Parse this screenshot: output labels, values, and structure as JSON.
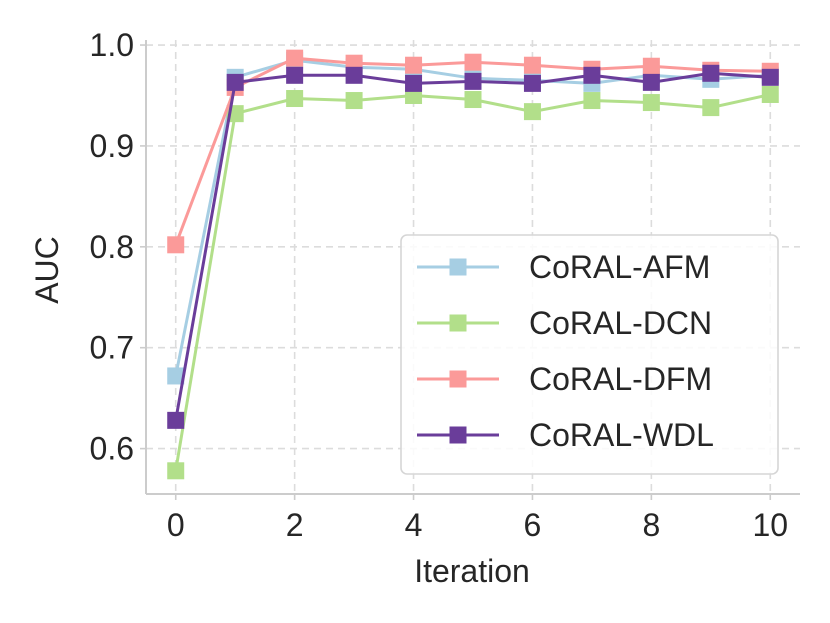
{
  "chart_data": {
    "type": "line",
    "title": "",
    "xlabel": "Iteration",
    "ylabel": "AUC",
    "xlim": [
      -0.5,
      10.5
    ],
    "ylim": [
      0.555,
      1.005
    ],
    "xticks": [
      0,
      2,
      4,
      6,
      8,
      10
    ],
    "xtick_labels": [
      "0",
      "2",
      "4",
      "6",
      "8",
      "10"
    ],
    "yticks": [
      0.6,
      0.7,
      0.8,
      0.9,
      1.0
    ],
    "ytick_labels": [
      "0.6",
      "0.7",
      "0.8",
      "0.9",
      "1.0"
    ],
    "grid": true,
    "legend_position": "lower-right",
    "x": [
      0,
      1,
      2,
      3,
      4,
      5,
      6,
      7,
      8,
      9,
      10
    ],
    "series": [
      {
        "name": "CoRAL-AFM",
        "color": "#a6cee3",
        "marker": "square",
        "values": [
          0.672,
          0.968,
          0.985,
          0.978,
          0.976,
          0.967,
          0.965,
          0.962,
          0.97,
          0.966,
          0.97
        ]
      },
      {
        "name": "CoRAL-DCN",
        "color": "#b2df8a",
        "marker": "square",
        "values": [
          0.578,
          0.932,
          0.947,
          0.945,
          0.95,
          0.946,
          0.934,
          0.945,
          0.943,
          0.938,
          0.951
        ]
      },
      {
        "name": "CoRAL-DFM",
        "color": "#fb9a99",
        "marker": "square",
        "values": [
          0.802,
          0.958,
          0.987,
          0.982,
          0.98,
          0.983,
          0.98,
          0.976,
          0.979,
          0.975,
          0.974
        ]
      },
      {
        "name": "CoRAL-WDL",
        "color": "#6a3d9a",
        "marker": "square",
        "values": [
          0.628,
          0.963,
          0.97,
          0.97,
          0.962,
          0.964,
          0.962,
          0.97,
          0.963,
          0.972,
          0.968
        ]
      }
    ]
  }
}
